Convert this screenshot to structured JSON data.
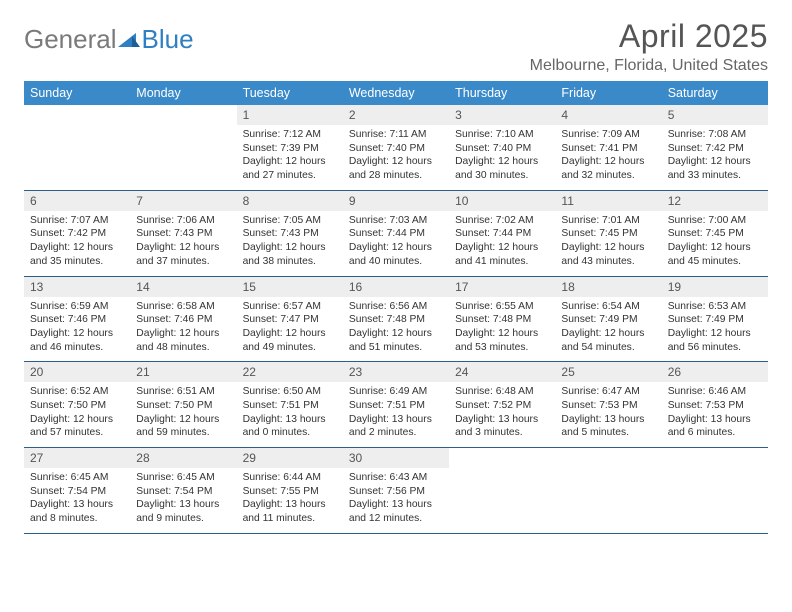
{
  "logo": {
    "part1": "General",
    "part2": "Blue"
  },
  "title": "April 2025",
  "location": "Melbourne, Florida, United States",
  "colors": {
    "header_bg": "#3a89c9",
    "header_text": "#ffffff",
    "row_divider": "#2b5e8a",
    "daynum_bg": "#eeeeee",
    "logo_gray": "#7a7a7a",
    "logo_blue": "#2f7fc2"
  },
  "typography": {
    "title_fontsize": 32,
    "location_fontsize": 16,
    "dayhead_fontsize": 12.5,
    "body_fontsize": 10.3
  },
  "layout": {
    "columns": 7,
    "rows": 5
  },
  "day_headers": [
    "Sunday",
    "Monday",
    "Tuesday",
    "Wednesday",
    "Thursday",
    "Friday",
    "Saturday"
  ],
  "weeks": [
    [
      {
        "empty": true
      },
      {
        "empty": true
      },
      {
        "n": "1",
        "sr": "7:12 AM",
        "ss": "7:39 PM",
        "dl": "12 hours and 27 minutes."
      },
      {
        "n": "2",
        "sr": "7:11 AM",
        "ss": "7:40 PM",
        "dl": "12 hours and 28 minutes."
      },
      {
        "n": "3",
        "sr": "7:10 AM",
        "ss": "7:40 PM",
        "dl": "12 hours and 30 minutes."
      },
      {
        "n": "4",
        "sr": "7:09 AM",
        "ss": "7:41 PM",
        "dl": "12 hours and 32 minutes."
      },
      {
        "n": "5",
        "sr": "7:08 AM",
        "ss": "7:42 PM",
        "dl": "12 hours and 33 minutes."
      }
    ],
    [
      {
        "n": "6",
        "sr": "7:07 AM",
        "ss": "7:42 PM",
        "dl": "12 hours and 35 minutes."
      },
      {
        "n": "7",
        "sr": "7:06 AM",
        "ss": "7:43 PM",
        "dl": "12 hours and 37 minutes."
      },
      {
        "n": "8",
        "sr": "7:05 AM",
        "ss": "7:43 PM",
        "dl": "12 hours and 38 minutes."
      },
      {
        "n": "9",
        "sr": "7:03 AM",
        "ss": "7:44 PM",
        "dl": "12 hours and 40 minutes."
      },
      {
        "n": "10",
        "sr": "7:02 AM",
        "ss": "7:44 PM",
        "dl": "12 hours and 41 minutes."
      },
      {
        "n": "11",
        "sr": "7:01 AM",
        "ss": "7:45 PM",
        "dl": "12 hours and 43 minutes."
      },
      {
        "n": "12",
        "sr": "7:00 AM",
        "ss": "7:45 PM",
        "dl": "12 hours and 45 minutes."
      }
    ],
    [
      {
        "n": "13",
        "sr": "6:59 AM",
        "ss": "7:46 PM",
        "dl": "12 hours and 46 minutes."
      },
      {
        "n": "14",
        "sr": "6:58 AM",
        "ss": "7:46 PM",
        "dl": "12 hours and 48 minutes."
      },
      {
        "n": "15",
        "sr": "6:57 AM",
        "ss": "7:47 PM",
        "dl": "12 hours and 49 minutes."
      },
      {
        "n": "16",
        "sr": "6:56 AM",
        "ss": "7:48 PM",
        "dl": "12 hours and 51 minutes."
      },
      {
        "n": "17",
        "sr": "6:55 AM",
        "ss": "7:48 PM",
        "dl": "12 hours and 53 minutes."
      },
      {
        "n": "18",
        "sr": "6:54 AM",
        "ss": "7:49 PM",
        "dl": "12 hours and 54 minutes."
      },
      {
        "n": "19",
        "sr": "6:53 AM",
        "ss": "7:49 PM",
        "dl": "12 hours and 56 minutes."
      }
    ],
    [
      {
        "n": "20",
        "sr": "6:52 AM",
        "ss": "7:50 PM",
        "dl": "12 hours and 57 minutes."
      },
      {
        "n": "21",
        "sr": "6:51 AM",
        "ss": "7:50 PM",
        "dl": "12 hours and 59 minutes."
      },
      {
        "n": "22",
        "sr": "6:50 AM",
        "ss": "7:51 PM",
        "dl": "13 hours and 0 minutes."
      },
      {
        "n": "23",
        "sr": "6:49 AM",
        "ss": "7:51 PM",
        "dl": "13 hours and 2 minutes."
      },
      {
        "n": "24",
        "sr": "6:48 AM",
        "ss": "7:52 PM",
        "dl": "13 hours and 3 minutes."
      },
      {
        "n": "25",
        "sr": "6:47 AM",
        "ss": "7:53 PM",
        "dl": "13 hours and 5 minutes."
      },
      {
        "n": "26",
        "sr": "6:46 AM",
        "ss": "7:53 PM",
        "dl": "13 hours and 6 minutes."
      }
    ],
    [
      {
        "n": "27",
        "sr": "6:45 AM",
        "ss": "7:54 PM",
        "dl": "13 hours and 8 minutes."
      },
      {
        "n": "28",
        "sr": "6:45 AM",
        "ss": "7:54 PM",
        "dl": "13 hours and 9 minutes."
      },
      {
        "n": "29",
        "sr": "6:44 AM",
        "ss": "7:55 PM",
        "dl": "13 hours and 11 minutes."
      },
      {
        "n": "30",
        "sr": "6:43 AM",
        "ss": "7:56 PM",
        "dl": "13 hours and 12 minutes."
      },
      {
        "empty": true
      },
      {
        "empty": true
      },
      {
        "empty": true
      }
    ]
  ],
  "labels": {
    "sunrise_prefix": "Sunrise: ",
    "sunset_prefix": "Sunset: ",
    "daylight_prefix": "Daylight: "
  }
}
